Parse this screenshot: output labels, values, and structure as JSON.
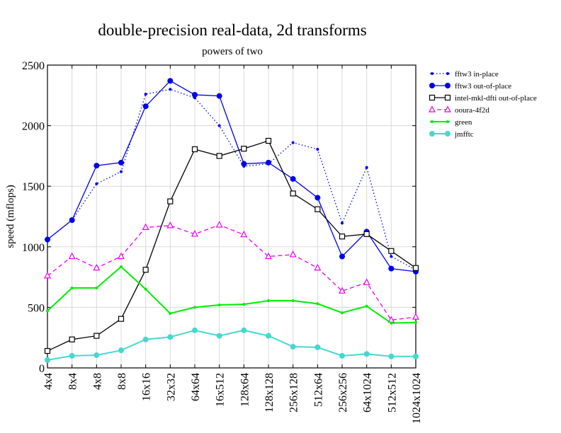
{
  "chart_data": {
    "type": "line",
    "title": "double-precision real-data, 2d transforms",
    "subtitle": "powers of two",
    "xlabel": "",
    "ylabel": "speed (mflops)",
    "ylim": [
      0,
      2500
    ],
    "yticks": [
      "0",
      "500",
      "1000",
      "1500",
      "2000",
      "2500"
    ],
    "grid": true,
    "legend_position": "right",
    "categories": [
      "4x4",
      "8x4",
      "4x8",
      "8x8",
      "16x16",
      "32x32",
      "64x64",
      "16x512",
      "128x64",
      "128x128",
      "256x128",
      "512x64",
      "256x256",
      "64x1024",
      "512x512",
      "1024x1024"
    ],
    "series": [
      {
        "name": "fftw3 in-place",
        "color": "#0000ee",
        "line": "dotted",
        "marker": "small-dot",
        "values": [
          1060,
          1220,
          1520,
          1620,
          2260,
          2300,
          2230,
          2000,
          1665,
          1685,
          1860,
          1805,
          1195,
          1655,
          920,
          810
        ]
      },
      {
        "name": "fftw3 out-of-place",
        "color": "#0000ee",
        "line": "solid",
        "marker": "dot",
        "values": [
          1060,
          1220,
          1670,
          1695,
          2160,
          2370,
          2255,
          2245,
          1685,
          1695,
          1560,
          1405,
          920,
          1125,
          820,
          795
        ]
      },
      {
        "name": "intel-mkl-dfti out-of-place",
        "color": "#000000",
        "line": "solid",
        "marker": "square",
        "values": [
          140,
          235,
          265,
          405,
          810,
          1375,
          1805,
          1750,
          1810,
          1875,
          1440,
          1310,
          1085,
          1105,
          965,
          825
        ]
      },
      {
        "name": "ooura-4f2d",
        "color": "#ee00ee",
        "line": "dashed",
        "marker": "triangle",
        "values": [
          760,
          920,
          825,
          920,
          1160,
          1175,
          1105,
          1180,
          1100,
          920,
          935,
          825,
          635,
          705,
          395,
          420
        ]
      },
      {
        "name": "green",
        "color": "#00ee00",
        "line": "solid",
        "marker": "small-dot",
        "values": [
          470,
          660,
          660,
          835,
          650,
          450,
          500,
          520,
          525,
          555,
          555,
          530,
          455,
          510,
          370,
          375
        ]
      },
      {
        "name": "jmfftc",
        "color": "#44d8d0",
        "line": "solid",
        "marker": "dot",
        "values": [
          65,
          100,
          105,
          145,
          235,
          255,
          310,
          265,
          310,
          265,
          175,
          170,
          100,
          115,
          95,
          95
        ]
      }
    ]
  }
}
